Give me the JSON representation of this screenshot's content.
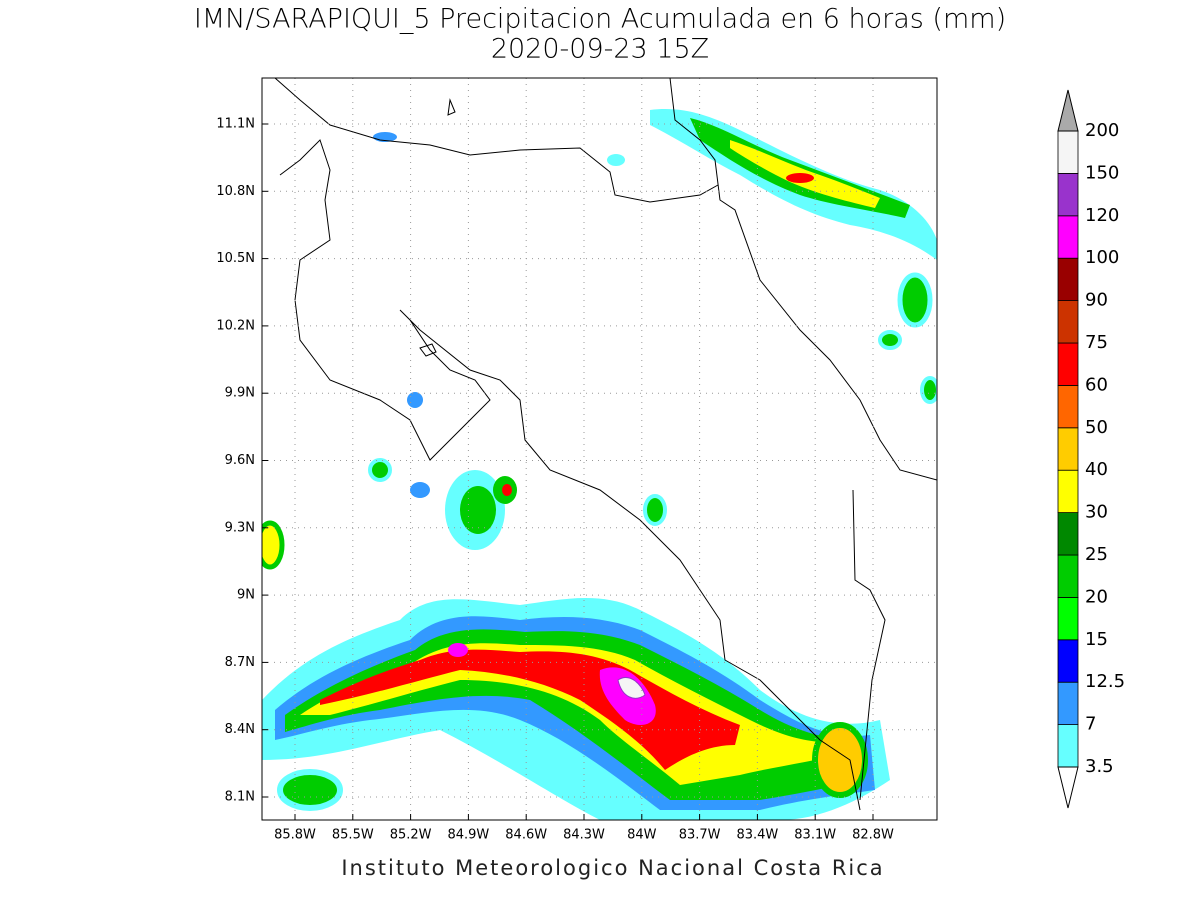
{
  "header": {
    "title": "IMN/SARAPIQUI_5 Precipitacion Acumulada en 6 horas (mm)",
    "subtitle": "2020-09-23 15Z"
  },
  "map": {
    "lon_ticks": [
      "85.8W",
      "85.5W",
      "85.2W",
      "84.9W",
      "84.6W",
      "84.3W",
      "84W",
      "83.7W",
      "83.4W",
      "83.1W",
      "82.8W"
    ],
    "lat_ticks": [
      "11.1N",
      "10.8N",
      "10.5N",
      "10.2N",
      "9.9N",
      "9.6N",
      "9.3N",
      "9N",
      "8.7N",
      "8.4N",
      "8.1N"
    ]
  },
  "colorbar": {
    "levels": [
      3.5,
      7,
      12.5,
      15,
      20,
      25,
      30,
      40,
      50,
      60,
      75,
      90,
      100,
      120,
      150,
      200
    ],
    "colors": [
      "#66ffff",
      "#3399ff",
      "#0000ff",
      "#00ff00",
      "#00cc00",
      "#008800",
      "#ffff00",
      "#ffcc00",
      "#ff6600",
      "#ff0000",
      "#cc3300",
      "#990000",
      "#ff00ff",
      "#9933cc",
      "#f5f5f5"
    ],
    "over_color": "#aaaaaa",
    "under_color": "#ffffff"
  },
  "footer": {
    "credit": "Instituto Meteorologico Nacional Costa Rica"
  }
}
